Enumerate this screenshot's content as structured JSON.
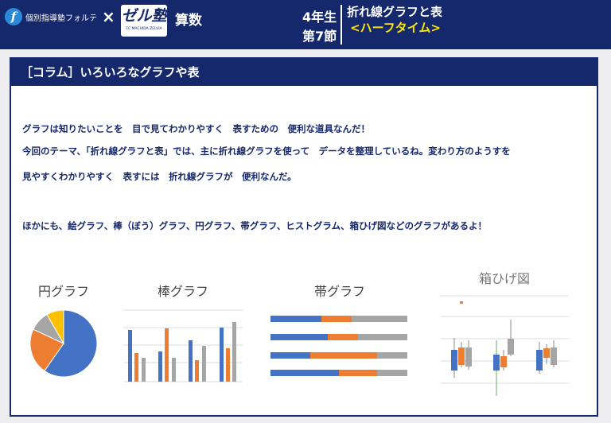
{
  "header": {
    "brand": "個別指導塾フォルテ",
    "brand_icon": "f",
    "cross": "×",
    "logo": "ゼル塾",
    "logo_sub": "FC MACHIDA ZELVIA",
    "subject": "算数",
    "grade": "4年生",
    "section": "第7節",
    "unit": "折れ線グラフと表",
    "subtitle": "<ハーフタイム>"
  },
  "panel": {
    "title": "［コラム］いろいろなグラフや表",
    "lines": [
      "グラフは知りたいことを　目で見てわかりやすく　表すための　便利な道具なんだ！",
      "今回のテーマ、「折れ線グラフと表」では、主に折れ線グラフを使って　データを整理しているね。変わり方のようすを",
      "見やすくわかりやすく　表すには　折れ線グラフが　便利なんだ。",
      "ほかにも、絵グラフ、棒（ぼう）グラフ、円グラフ、帯グラフ、ヒストグラム、箱ひげ図などのグラフがあるよ！"
    ],
    "illustrations": [
      "円グラフ",
      "棒グラフ",
      "帯グラフ",
      "箱ひげ図"
    ]
  }
}
